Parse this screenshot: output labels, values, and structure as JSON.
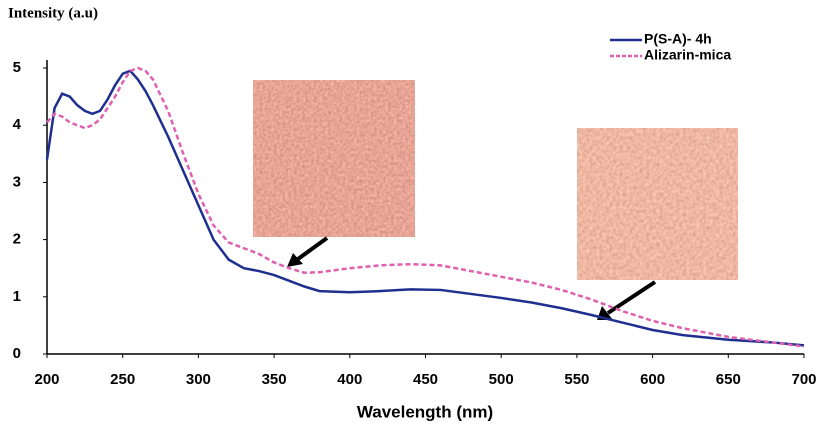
{
  "chart_data": {
    "type": "line",
    "y_label": "Intensity (a.u)",
    "x_label": "Wavelength (nm)",
    "x": [
      200,
      205,
      210,
      215,
      220,
      225,
      230,
      235,
      240,
      245,
      250,
      255,
      260,
      265,
      270,
      280,
      290,
      300,
      310,
      320,
      330,
      340,
      350,
      360,
      370,
      380,
      400,
      420,
      440,
      460,
      480,
      500,
      520,
      540,
      560,
      580,
      600,
      620,
      650,
      680,
      700
    ],
    "series": [
      {
        "name": "P(S-A)- 4h",
        "color": "#1f2f8f",
        "dash": false,
        "values": [
          3.4,
          4.3,
          4.55,
          4.5,
          4.35,
          4.25,
          4.2,
          4.25,
          4.45,
          4.7,
          4.9,
          4.95,
          4.8,
          4.6,
          4.35,
          3.8,
          3.2,
          2.6,
          2.0,
          1.65,
          1.5,
          1.45,
          1.38,
          1.28,
          1.18,
          1.1,
          1.08,
          1.1,
          1.13,
          1.12,
          1.05,
          0.98,
          0.9,
          0.8,
          0.68,
          0.55,
          0.42,
          0.33,
          0.25,
          0.2,
          0.15
        ]
      },
      {
        "name": "Alizarin-mica",
        "color": "#e060b0",
        "dash": true,
        "values": [
          4.05,
          4.2,
          4.15,
          4.05,
          4.0,
          3.95,
          4.0,
          4.1,
          4.3,
          4.5,
          4.75,
          4.95,
          5.0,
          4.95,
          4.8,
          4.25,
          3.5,
          2.8,
          2.25,
          1.95,
          1.85,
          1.75,
          1.6,
          1.5,
          1.42,
          1.43,
          1.5,
          1.55,
          1.57,
          1.55,
          1.45,
          1.35,
          1.25,
          1.12,
          0.95,
          0.75,
          0.58,
          0.45,
          0.3,
          0.2,
          0.13
        ]
      }
    ],
    "xlim": [
      200,
      700
    ],
    "xticks": [
      200,
      250,
      300,
      350,
      400,
      450,
      500,
      550,
      600,
      650,
      700
    ],
    "ylim": [
      0,
      5
    ],
    "yticks": [
      0,
      1,
      2,
      3,
      4,
      5
    ],
    "grid": false,
    "legend": "upper right"
  }
}
